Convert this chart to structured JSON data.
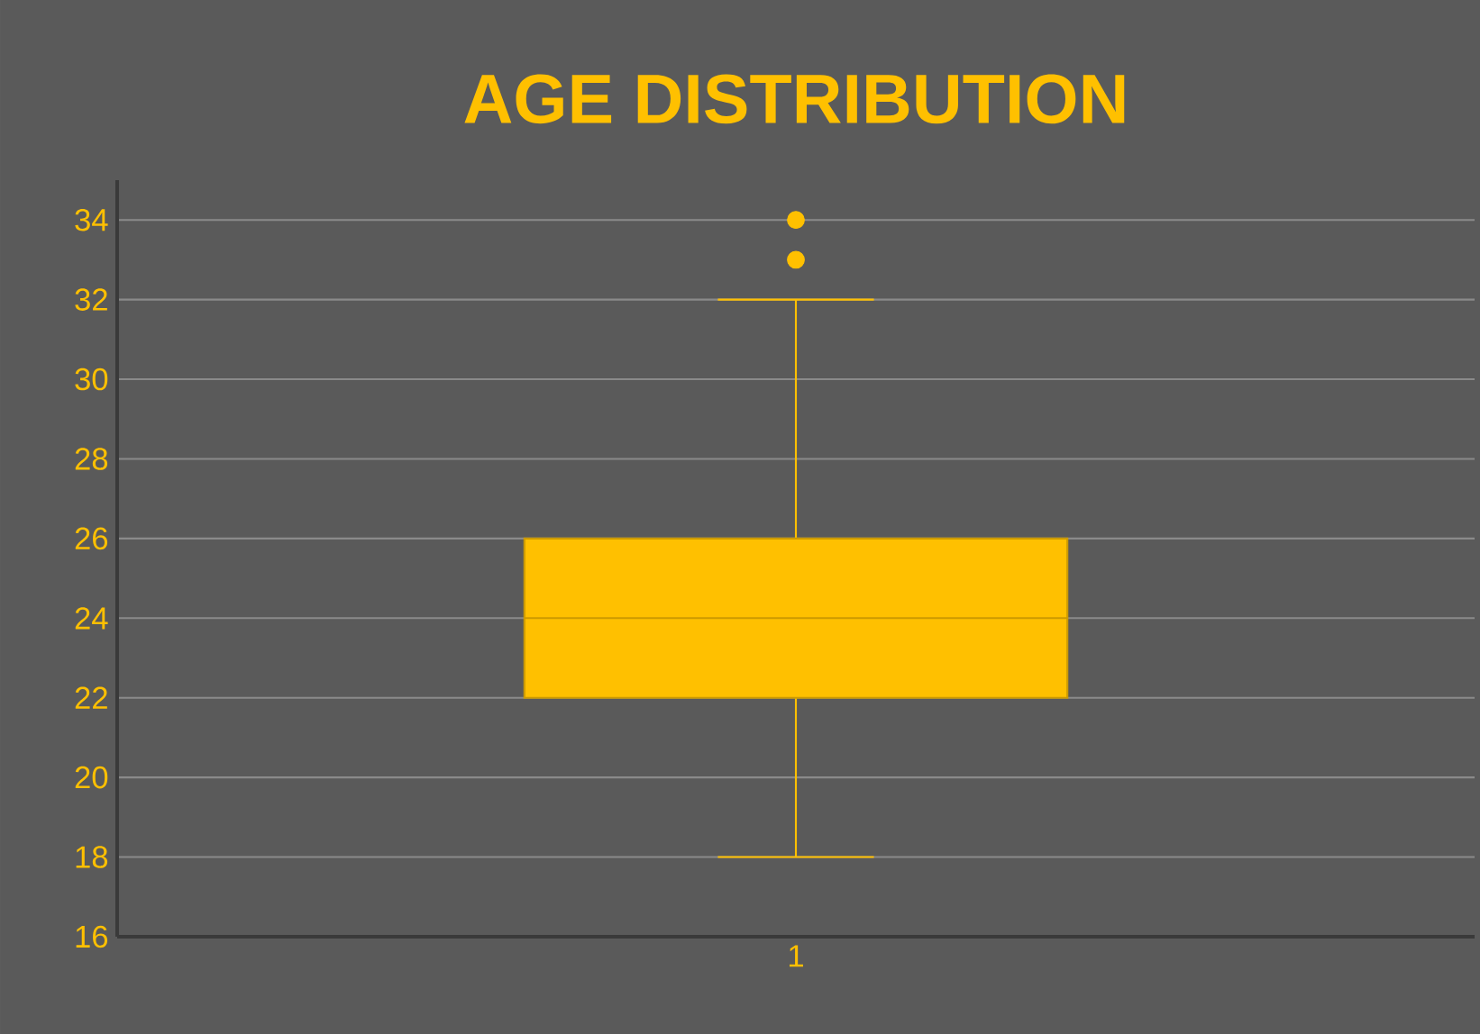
{
  "chart_data": {
    "type": "box",
    "title": "AGE DISTRIBUTION",
    "categories": [
      "1"
    ],
    "boxes": [
      {
        "low": 18,
        "q1": 22,
        "median": 24,
        "q3": 26,
        "high": 32,
        "outliers": [
          33,
          34
        ]
      }
    ],
    "color": "#ffc000",
    "marker": "circle",
    "grid": "y",
    "ylim": [
      16,
      35
    ],
    "yticks": [
      16,
      18,
      20,
      22,
      24,
      26,
      28,
      30,
      32,
      34
    ]
  }
}
